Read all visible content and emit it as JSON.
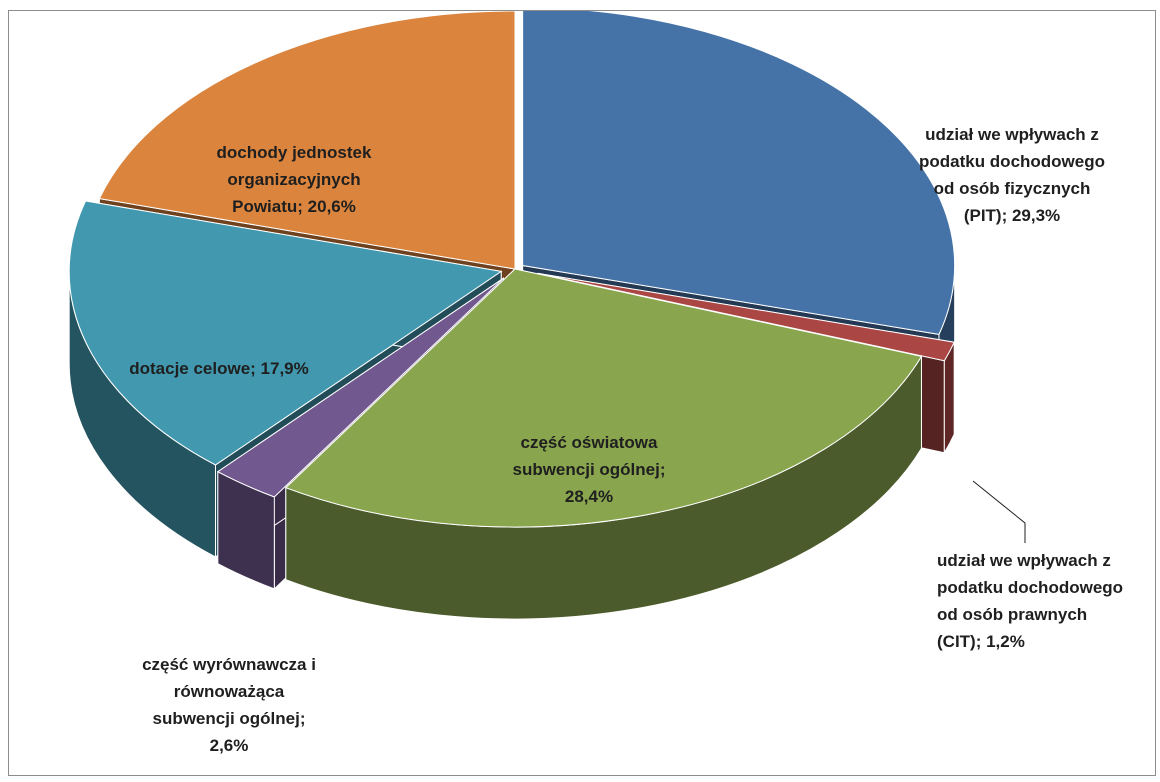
{
  "chart_data": {
    "type": "pie",
    "title": "",
    "three_d": true,
    "exploded": true,
    "legend": "none",
    "slices": [
      {
        "label": "udział we wpływach z podatku dochodowego od osób fizycznych (PIT)",
        "value": 29.3,
        "display": "udział we wpływach z\npodatku dochodowego\nod osób fizycznych\n(PIT); 29,3%",
        "color": "#4572a7"
      },
      {
        "label": "udział we wpływach z podatku dochodowego od osób prawnych (CIT)",
        "value": 1.2,
        "display": "udział we wpływach z\npodatku dochodowego\nod osób prawnych\n(CIT); 1,2%",
        "color": "#aa4643"
      },
      {
        "label": "część oświatowa subwencji ogólnej",
        "value": 28.4,
        "display": "część oświatowa\nsubwencji ogólnej;\n28,4%",
        "color": "#89a54e"
      },
      {
        "label": "część wyrównawcza i równoważąca subwencji ogólnej",
        "value": 2.6,
        "display": "część wyrównawcza i\nrównoważąca\nsubwencji ogólnej;\n2,6%",
        "color": "#71588f"
      },
      {
        "label": "dotacje celowe",
        "value": 17.9,
        "display": "dotacje celowe; 17,9%",
        "color": "#4198af"
      },
      {
        "label": "dochody jednostek organizacyjnych Powiatu",
        "value": 20.6,
        "display": "dochody jednostek\norganizacyjnych\nPowiatu; 20,6%",
        "color": "#db843d"
      }
    ]
  }
}
